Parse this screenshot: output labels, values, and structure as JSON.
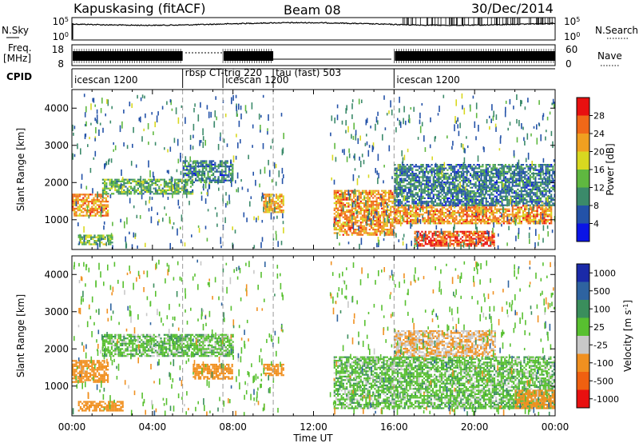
{
  "header": {
    "title": "Kapuskasing (fitACF)",
    "beam": "Beam 08",
    "date": "30/Dec/2014"
  },
  "status_panels": {
    "nsky_label": "N.Sky",
    "nsky_ticks": [
      "10^5",
      "10^0"
    ],
    "nsearch_label": "N.Search",
    "freq_label_line1": "Freq.",
    "freq_label_line2": "[MHz]",
    "freq_ticks": [
      "18",
      "8"
    ],
    "nave_label": "Nave",
    "nave_ticks": [
      "60",
      "0"
    ],
    "cpid_label": "CPID",
    "cpid_segments": [
      {
        "label": "icescan 1200",
        "start_hour": 0
      },
      {
        "label": "rbsp CT-trig 220",
        "start_hour": 5.5
      },
      {
        "label": "icescan 1200",
        "start_hour": 7.5
      },
      {
        "label": "tau (fast) 503",
        "start_hour": 10
      },
      {
        "label": "icescan 1200",
        "start_hour": 16
      }
    ]
  },
  "axes": {
    "ylabel": "Slant Range [km]",
    "xlabel": "Time UT",
    "x_ticks": [
      "00:00",
      "04:00",
      "08:00",
      "12:00",
      "16:00",
      "20:00",
      "00:00"
    ],
    "y_ticks": [
      "1000",
      "2000",
      "3000",
      "4000"
    ]
  },
  "power_colorbar": {
    "label": "Power [dB]",
    "ticks": [
      "4",
      "8",
      "12",
      "16",
      "20",
      "24",
      "28"
    ],
    "colors": [
      "#0a14e6",
      "#2352a8",
      "#3b8a6a",
      "#5fb840",
      "#d8d820",
      "#f0a020",
      "#f06818",
      "#e81010"
    ]
  },
  "velocity_colorbar": {
    "label": "Velocity [m s^-1]",
    "ticks": [
      "1000",
      "500",
      "100",
      "25",
      "-25",
      "-100",
      "-500",
      "-1000"
    ],
    "colors": [
      "#1a2aa8",
      "#2e63a0",
      "#3a8e5c",
      "#58c030",
      "#c8c8c8",
      "#f09020",
      "#f06010",
      "#e81010"
    ]
  },
  "chart_data": [
    {
      "type": "heatmap",
      "title": "Power",
      "xlabel": "Time UT",
      "ylabel": "Slant Range [km]",
      "xlim": [
        0,
        24
      ],
      "ylim": [
        200,
        4500
      ],
      "colorbar_label": "Power [dB]",
      "colorbar_range": [
        0,
        30
      ],
      "regions": [
        {
          "t0": 0.0,
          "t1": 1.8,
          "r0": 1100,
          "r1": 1700,
          "value": 22
        },
        {
          "t0": 0.3,
          "t1": 2.0,
          "r0": 350,
          "r1": 600,
          "value": 14
        },
        {
          "t0": 1.5,
          "t1": 6.0,
          "r0": 1700,
          "r1": 2100,
          "value": 12
        },
        {
          "t0": 5.5,
          "t1": 8.0,
          "r0": 2000,
          "r1": 2600,
          "value": 8
        },
        {
          "t0": 9.5,
          "t1": 10.5,
          "r0": 1200,
          "r1": 1700,
          "value": 20
        },
        {
          "t0": 13.0,
          "t1": 16.0,
          "r0": 600,
          "r1": 1800,
          "value": 22
        },
        {
          "t0": 16.0,
          "t1": 23.8,
          "r0": 900,
          "r1": 1400,
          "value": 22
        },
        {
          "t0": 17.0,
          "t1": 21.0,
          "r0": 300,
          "r1": 700,
          "value": 26
        },
        {
          "t0": 16.0,
          "t1": 24.0,
          "r0": 1400,
          "r1": 2500,
          "value": 8
        }
      ]
    },
    {
      "type": "heatmap",
      "title": "Velocity",
      "xlabel": "Time UT",
      "ylabel": "Slant Range [km]",
      "xlim": [
        0,
        24
      ],
      "ylim": [
        200,
        4500
      ],
      "colorbar_label": "Velocity [m s^-1]",
      "colorbar_range": [
        -1000,
        1000
      ],
      "regions": [
        {
          "t0": 0.0,
          "t1": 1.8,
          "r0": 1100,
          "r1": 1700,
          "value": -300
        },
        {
          "t0": 0.3,
          "t1": 2.5,
          "r0": 350,
          "r1": 600,
          "value": -200
        },
        {
          "t0": 1.5,
          "t1": 8.0,
          "r0": 1800,
          "r1": 2400,
          "value": 0
        },
        {
          "t0": 6.0,
          "t1": 8.0,
          "r0": 1200,
          "r1": 1600,
          "value": -150
        },
        {
          "t0": 9.5,
          "t1": 10.5,
          "r0": 1300,
          "r1": 1600,
          "value": -400
        },
        {
          "t0": 13.0,
          "t1": 24.0,
          "r0": 400,
          "r1": 1800,
          "value": 0
        },
        {
          "t0": 16.0,
          "t1": 21.0,
          "r0": 1800,
          "r1": 2500,
          "value": -100
        },
        {
          "t0": 22.0,
          "t1": 24.0,
          "r0": 400,
          "r1": 900,
          "value": -200
        }
      ]
    }
  ]
}
